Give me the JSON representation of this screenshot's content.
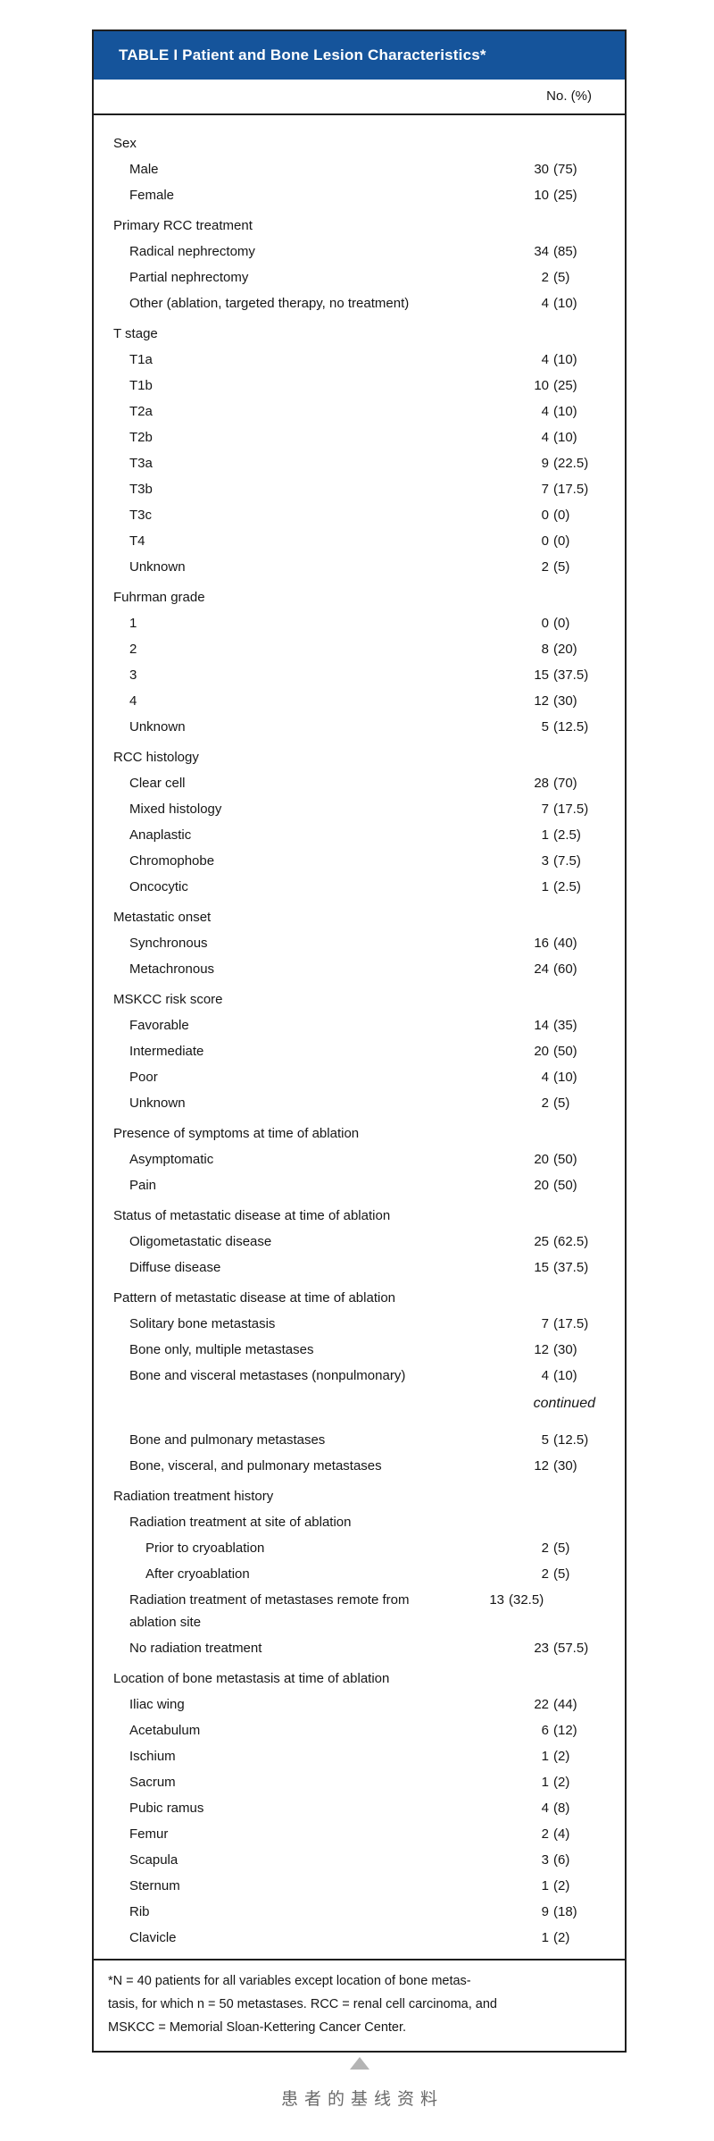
{
  "table": {
    "title": "TABLE I Patient and Bone Lesion Characteristics*",
    "column_header": "No. (%)",
    "accent_color": "#15549B",
    "rows": [
      {
        "type": "category",
        "label": "Sex"
      },
      {
        "type": "item",
        "indent": 1,
        "label": "Male",
        "value": "30 (75)"
      },
      {
        "type": "item",
        "indent": 1,
        "label": "Female",
        "value": "10 (25)"
      },
      {
        "type": "category",
        "label": "Primary RCC treatment"
      },
      {
        "type": "item",
        "indent": 1,
        "label": "Radical nephrectomy",
        "value": "34 (85)"
      },
      {
        "type": "item",
        "indent": 1,
        "label": "Partial nephrectomy",
        "value": "2 (5)"
      },
      {
        "type": "item",
        "indent": 1,
        "label": "Other (ablation, targeted therapy, no treatment)",
        "value": "4 (10)"
      },
      {
        "type": "category",
        "label": "T stage"
      },
      {
        "type": "item",
        "indent": 1,
        "label": "T1a",
        "value": "4 (10)"
      },
      {
        "type": "item",
        "indent": 1,
        "label": "T1b",
        "value": "10 (25)"
      },
      {
        "type": "item",
        "indent": 1,
        "label": "T2a",
        "value": "4 (10)"
      },
      {
        "type": "item",
        "indent": 1,
        "label": "T2b",
        "value": "4 (10)"
      },
      {
        "type": "item",
        "indent": 1,
        "label": "T3a",
        "value": "9 (22.5)"
      },
      {
        "type": "item",
        "indent": 1,
        "label": "T3b",
        "value": "7 (17.5)"
      },
      {
        "type": "item",
        "indent": 1,
        "label": "T3c",
        "value": "0 (0)"
      },
      {
        "type": "item",
        "indent": 1,
        "label": "T4",
        "value": "0 (0)"
      },
      {
        "type": "item",
        "indent": 1,
        "label": "Unknown",
        "value": "2 (5)"
      },
      {
        "type": "category",
        "label": "Fuhrman grade"
      },
      {
        "type": "item",
        "indent": 1,
        "label": "1",
        "value": "0 (0)"
      },
      {
        "type": "item",
        "indent": 1,
        "label": "2",
        "value": "8 (20)"
      },
      {
        "type": "item",
        "indent": 1,
        "label": "3",
        "value": "15 (37.5)"
      },
      {
        "type": "item",
        "indent": 1,
        "label": "4",
        "value": "12 (30)"
      },
      {
        "type": "item",
        "indent": 1,
        "label": "Unknown",
        "value": "5 (12.5)"
      },
      {
        "type": "category",
        "label": "RCC histology"
      },
      {
        "type": "item",
        "indent": 1,
        "label": "Clear cell",
        "value": "28 (70)"
      },
      {
        "type": "item",
        "indent": 1,
        "label": "Mixed histology",
        "value": "7 (17.5)"
      },
      {
        "type": "item",
        "indent": 1,
        "label": "Anaplastic",
        "value": "1 (2.5)"
      },
      {
        "type": "item",
        "indent": 1,
        "label": "Chromophobe",
        "value": "3 (7.5)"
      },
      {
        "type": "item",
        "indent": 1,
        "label": "Oncocytic",
        "value": "1 (2.5)"
      },
      {
        "type": "category",
        "label": "Metastatic onset"
      },
      {
        "type": "item",
        "indent": 1,
        "label": "Synchronous",
        "value": "16 (40)"
      },
      {
        "type": "item",
        "indent": 1,
        "label": "Metachronous",
        "value": "24 (60)"
      },
      {
        "type": "category",
        "label": "MSKCC risk score"
      },
      {
        "type": "item",
        "indent": 1,
        "label": "Favorable",
        "value": "14 (35)"
      },
      {
        "type": "item",
        "indent": 1,
        "label": "Intermediate",
        "value": "20 (50)"
      },
      {
        "type": "item",
        "indent": 1,
        "label": "Poor",
        "value": "4 (10)"
      },
      {
        "type": "item",
        "indent": 1,
        "label": "Unknown",
        "value": "2 (5)"
      },
      {
        "type": "category",
        "label": "Presence of symptoms at time of ablation"
      },
      {
        "type": "item",
        "indent": 1,
        "label": "Asymptomatic",
        "value": "20 (50)"
      },
      {
        "type": "item",
        "indent": 1,
        "label": "Pain",
        "value": "20 (50)"
      },
      {
        "type": "category",
        "label": "Status of metastatic disease at time of ablation"
      },
      {
        "type": "item",
        "indent": 1,
        "label": "Oligometastatic disease",
        "value": "25 (62.5)"
      },
      {
        "type": "item",
        "indent": 1,
        "label": "Diffuse disease",
        "value": "15 (37.5)"
      },
      {
        "type": "category",
        "label": "Pattern of metastatic disease at time of ablation"
      },
      {
        "type": "item",
        "indent": 1,
        "label": "Solitary bone metastasis",
        "value": "7 (17.5)"
      },
      {
        "type": "item",
        "indent": 1,
        "label": "Bone only, multiple metastases",
        "value": "12 (30)"
      },
      {
        "type": "item",
        "indent": 1,
        "label": "Bone and visceral metastases (nonpulmonary)",
        "value": "4 (10)"
      },
      {
        "type": "continued",
        "label": "continued"
      },
      {
        "type": "item",
        "indent": 1,
        "label": "Bone and pulmonary metastases",
        "value": "5 (12.5)"
      },
      {
        "type": "item",
        "indent": 1,
        "label": "Bone, visceral, and pulmonary metastases",
        "value": "12 (30)"
      },
      {
        "type": "category",
        "label": "Radiation treatment history"
      },
      {
        "type": "item",
        "indent": 1,
        "label": "Radiation treatment at site of ablation"
      },
      {
        "type": "item",
        "indent": 2,
        "label": "Prior to cryoablation",
        "value": "2 (5)"
      },
      {
        "type": "item",
        "indent": 2,
        "label": "After cryoablation",
        "value": "2 (5)"
      },
      {
        "type": "item",
        "indent": 1,
        "wrap": true,
        "label": "Radiation treatment of metastases remote from ablation site",
        "value": "13 (32.5)"
      },
      {
        "type": "item",
        "indent": 1,
        "label": "No radiation treatment",
        "value": "23 (57.5)"
      },
      {
        "type": "category",
        "label": "Location of bone metastasis at time of ablation"
      },
      {
        "type": "item",
        "indent": 1,
        "label": "Iliac wing",
        "value": "22 (44)"
      },
      {
        "type": "item",
        "indent": 1,
        "label": "Acetabulum",
        "value": "6 (12)"
      },
      {
        "type": "item",
        "indent": 1,
        "label": "Ischium",
        "value": "1 (2)"
      },
      {
        "type": "item",
        "indent": 1,
        "label": "Sacrum",
        "value": "1 (2)"
      },
      {
        "type": "item",
        "indent": 1,
        "label": "Pubic ramus",
        "value": "4 (8)"
      },
      {
        "type": "item",
        "indent": 1,
        "label": "Femur",
        "value": "2 (4)"
      },
      {
        "type": "item",
        "indent": 1,
        "label": "Scapula",
        "value": "3 (6)"
      },
      {
        "type": "item",
        "indent": 1,
        "label": "Sternum",
        "value": "1 (2)"
      },
      {
        "type": "item",
        "indent": 1,
        "label": "Rib",
        "value": "9 (18)"
      },
      {
        "type": "item",
        "indent": 1,
        "label": "Clavicle",
        "value": "1 (2)"
      }
    ],
    "footnote_lines": [
      "*N = 40 patients for all variables except location of bone metas-",
      "tasis, for which n = 50 metastases. RCC = renal cell carcinoma, and",
      "MSKCC = Memorial Sloan-Kettering Cancer Center."
    ]
  },
  "caption": {
    "text": "患者的基线资料"
  }
}
